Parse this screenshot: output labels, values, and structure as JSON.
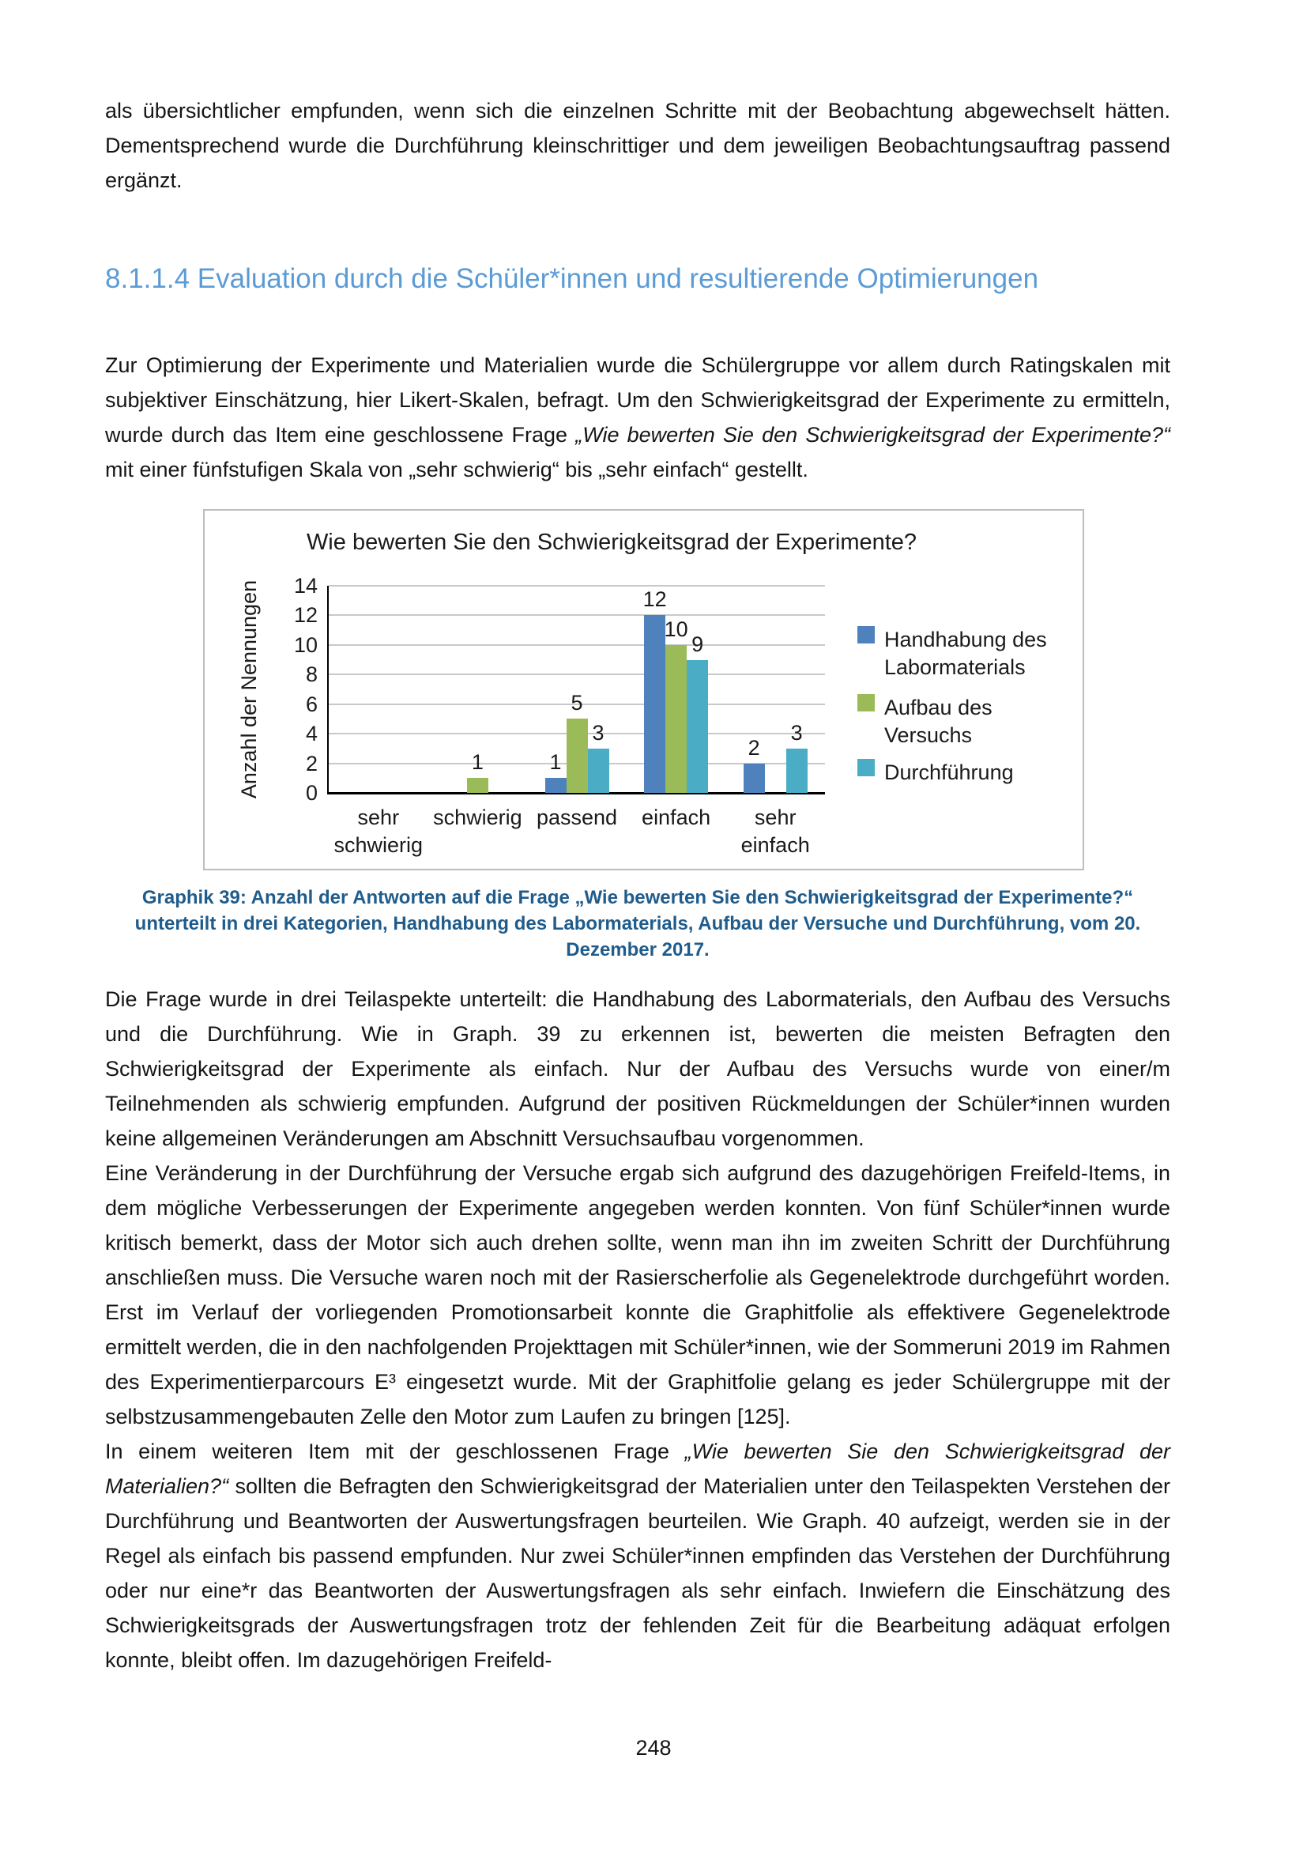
{
  "page": {
    "number": "248"
  },
  "heading": {
    "text": "8.1.1.4 Evaluation durch die Schüler*innen und resultierende Optimierungen"
  },
  "paragraphs": {
    "p1": [
      {
        "t": "als übersichtlicher empfunden, wenn sich die einzelnen Schritte mit der Beobachtung abgewechselt hätten. Dementsprechend wurde die Durchführung kleinschrittiger und dem jeweiligen Beobachtungsauftrag passend ergänzt."
      }
    ],
    "p2": [
      {
        "t": "Zur Optimierung der Experimente und Materialien wurde die Schülergruppe vor allem durch Ratingskalen mit subjektiver Einschätzung, hier Likert-Skalen, befragt. Um den Schwierigkeitsgrad der Experimente zu ermitteln, wurde durch das Item eine geschlossene Frage "
      },
      {
        "t": "„Wie bewerten Sie den Schwierigkeitsgrad der Experimente?“",
        "i": true
      },
      {
        "t": " mit einer fünfstufigen Skala von „sehr schwierig“ bis „sehr einfach“ gestellt."
      }
    ],
    "p3": [
      {
        "t": "Die Frage wurde in drei Teilaspekte unterteilt: die Handhabung des Labormaterials, den Aufbau des Versuchs und die Durchführung. Wie in Graph. 39 zu erkennen ist, bewerten die meisten Befragten den Schwierigkeitsgrad der Experimente als einfach. Nur der Aufbau des Versuchs wurde von einer/m Teilnehmenden als schwierig empfunden. Aufgrund der positiven Rückmeldungen der Schüler*innen wurden keine allgemeinen Veränderungen am Abschnitt Versuchsaufbau vorgenommen."
      }
    ],
    "p4": [
      {
        "t": "Eine Veränderung in der Durchführung der Versuche ergab sich aufgrund des dazugehörigen Freifeld-Items, in dem mögliche Verbesserungen der Experimente angegeben werden konnten. Von fünf Schüler*innen wurde kritisch bemerkt, dass der Motor sich auch drehen sollte, wenn man ihn im zweiten Schritt der Durchführung anschließen muss. Die Versuche waren noch mit der Rasierscherfolie als Gegenelektrode durchgeführt worden. Erst im Verlauf der vorliegenden Promotionsarbeit konnte die Graphitfolie als effektivere Gegenelektrode ermittelt werden, die in den nachfolgenden Projekttagen mit Schüler*innen, wie der Sommeruni 2019 im Rahmen des Experimentierparcours E³ eingesetzt wurde. Mit der Graphitfolie gelang es jeder Schülergruppe mit der selbstzusammengebauten Zelle den Motor zum Laufen zu bringen [125]."
      }
    ],
    "p5": [
      {
        "t": "In einem weiteren Item mit der geschlossenen Frage "
      },
      {
        "t": "„Wie bewerten Sie den Schwierigkeitsgrad der Materialien?“",
        "i": true
      },
      {
        "t": " sollten die Befragten den Schwierigkeitsgrad der Materialien unter den Teilaspekten Verstehen der Durchführung und Beantworten der Auswertungsfragen beurteilen. Wie Graph. 40 aufzeigt, werden sie in der Regel als einfach bis passend empfunden. Nur zwei Schüler*innen empfinden das Verstehen der Durchführung oder nur eine*r das Beantworten der Auswertungsfragen als sehr einfach. Inwiefern die Einschätzung des Schwierigkeitsgrads der Auswertungsfragen trotz der fehlenden Zeit für die Bearbeitung adäquat erfolgen konnte, bleibt offen. Im dazugehörigen Freifeld-"
      }
    ]
  },
  "caption": {
    "text": "Graphik 39: Anzahl der Antworten auf die Frage „Wie bewerten Sie den Schwierigkeitsgrad der Experimente?“ unterteilt in drei Kategorien, Handhabung des Labormaterials, Aufbau der Versuche und Durchführung, vom 20. Dezember 2017."
  },
  "chart_data": {
    "type": "bar",
    "title": "Wie bewerten Sie den Schwierigkeitsgrad der Experimente?",
    "categories": [
      "sehr schwierig",
      "schwierig",
      "passend",
      "einfach",
      "sehr einfach"
    ],
    "series": [
      {
        "name": "Handhabung des Labormaterials",
        "color": "#4F81BD",
        "values": [
          0,
          0,
          1,
          12,
          2
        ]
      },
      {
        "name": "Aufbau des Versuchs",
        "color": "#9BBB59",
        "values": [
          0,
          1,
          5,
          10,
          0
        ]
      },
      {
        "name": "Durchführung",
        "color": "#4BACC6",
        "values": [
          0,
          0,
          3,
          9,
          3
        ]
      }
    ],
    "xlabel": "",
    "ylabel": "Anzahl der Nennungen",
    "ylim": [
      0,
      14
    ],
    "ytick_step": 2,
    "grid": true,
    "legend_position": "right",
    "axis_color": "#000000",
    "gridline_color": "#C9C9C9",
    "heading_color": "#5B9BD5",
    "caption_color": "#1F5C8C"
  }
}
